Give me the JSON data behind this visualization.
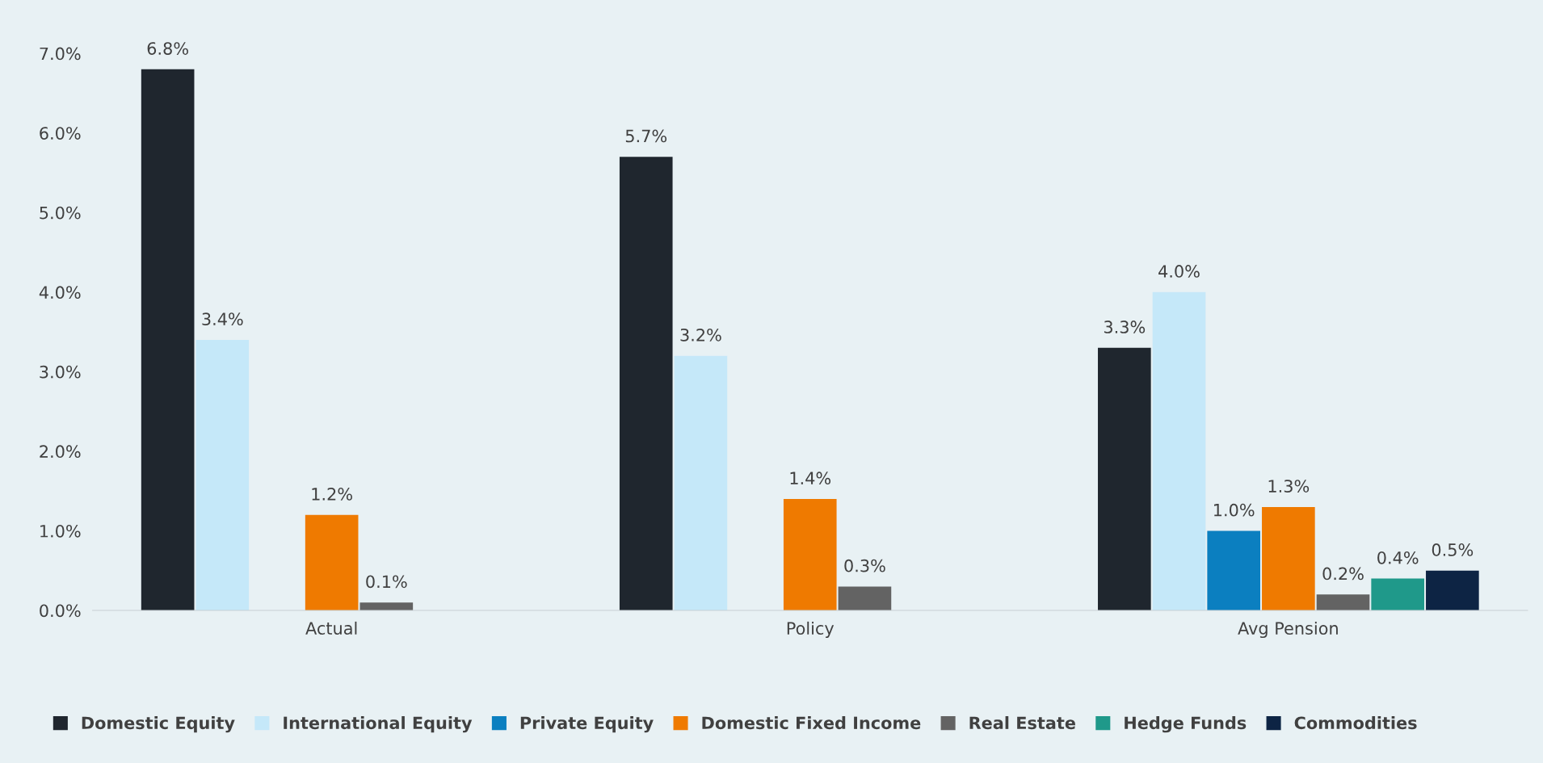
{
  "chart_data": {
    "type": "bar",
    "categories": [
      "Actual",
      "Policy",
      "Avg Pension"
    ],
    "series": [
      {
        "name": "Domestic Equity",
        "color": "#1f262e",
        "values": [
          6.8,
          5.7,
          3.3
        ],
        "value_labels": [
          "6.8%",
          "5.7%",
          "3.3%"
        ]
      },
      {
        "name": "International Equity",
        "color": "#c5e8f9",
        "values": [
          3.4,
          3.2,
          4.0
        ],
        "value_labels": [
          "3.4%",
          "3.2%",
          "4.0%"
        ]
      },
      {
        "name": "Private Equity",
        "color": "#0b7fc0",
        "values": [
          null,
          null,
          1.0
        ],
        "value_labels": [
          null,
          null,
          "1.0%"
        ]
      },
      {
        "name": "Domestic Fixed Income",
        "color": "#ef7a00",
        "values": [
          1.2,
          1.4,
          1.3
        ],
        "value_labels": [
          "1.2%",
          "1.4%",
          "1.3%"
        ]
      },
      {
        "name": "Real Estate",
        "color": "#636363",
        "values": [
          0.1,
          0.3,
          0.2
        ],
        "value_labels": [
          "0.1%",
          "0.3%",
          "0.2%"
        ]
      },
      {
        "name": "Hedge Funds",
        "color": "#1f998a",
        "values": [
          null,
          null,
          0.4
        ],
        "value_labels": [
          null,
          null,
          "0.4%"
        ]
      },
      {
        "name": "Commodities",
        "color": "#0d2444",
        "values": [
          null,
          null,
          0.5
        ],
        "value_labels": [
          null,
          null,
          "0.5%"
        ]
      }
    ],
    "ylim": [
      0,
      7
    ],
    "yticks": [
      {
        "value": 0,
        "label": "0.0%"
      },
      {
        "value": 1,
        "label": "1.0%"
      },
      {
        "value": 2,
        "label": "2.0%"
      },
      {
        "value": 3,
        "label": "3.0%"
      },
      {
        "value": 4,
        "label": "4.0%"
      },
      {
        "value": 5,
        "label": "5.0%"
      },
      {
        "value": 6,
        "label": "6.0%"
      },
      {
        "value": 7,
        "label": "7.0%"
      }
    ],
    "grid": false,
    "legend": "bottom"
  }
}
